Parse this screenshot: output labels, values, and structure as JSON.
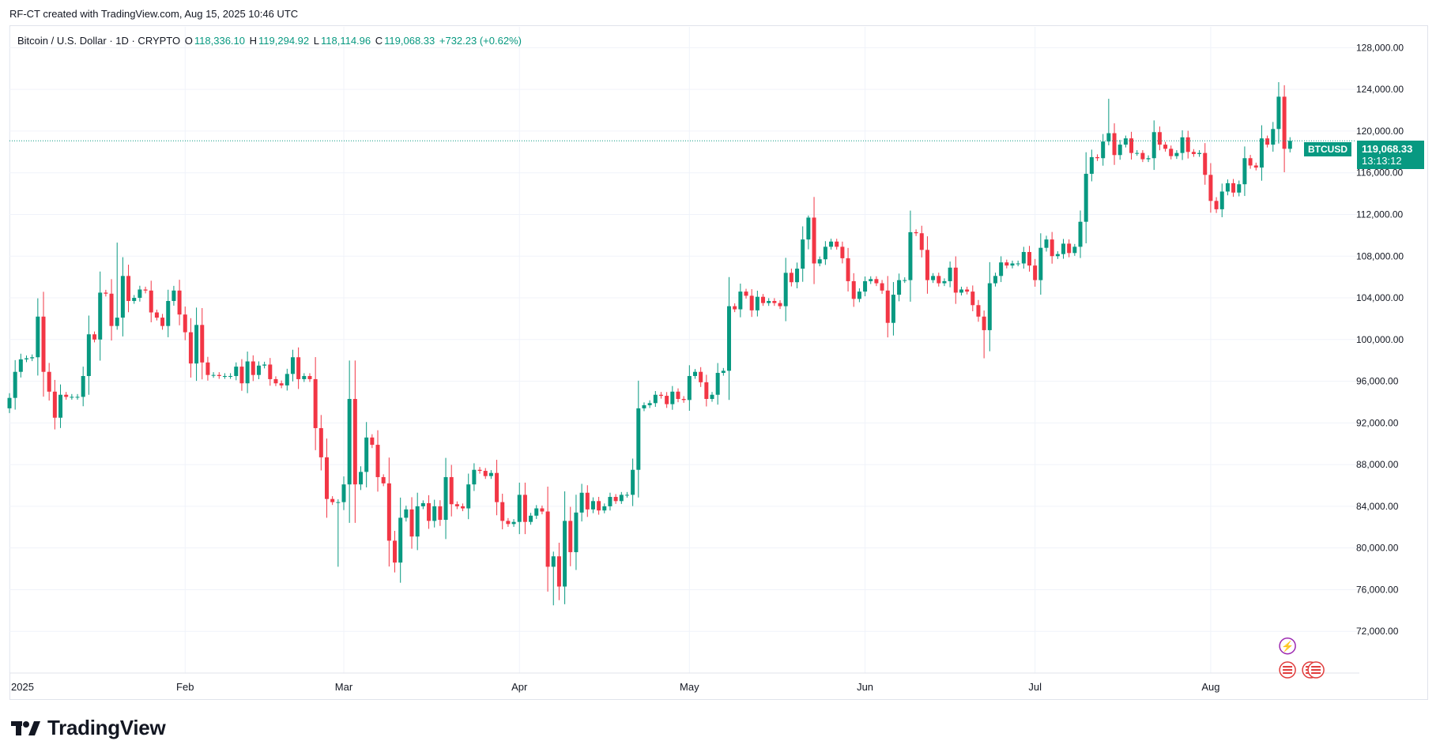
{
  "credit": "RF-CT created with TradingView.com, Aug 15, 2025 10:46 UTC",
  "legend": {
    "symbol": "Bitcoin / U.S. Dollar · 1D · CRYPTO",
    "open_label": "O",
    "open": "118,336.10",
    "high_label": "H",
    "high": "119,294.92",
    "low_label": "L",
    "low": "118,114.96",
    "close_label": "C",
    "close": "119,068.33",
    "change": "+732.23 (+0.62%)"
  },
  "last_price": {
    "symbol": "BTCUSD",
    "price": "119,068.33",
    "countdown": "13:13:12"
  },
  "brand": "TradingView",
  "colors": {
    "up": "#089981",
    "down": "#f23645",
    "grid": "#f0f3fa",
    "text": "#131722",
    "event_red": "#e03b3b",
    "event_purple": "#9c27b0"
  },
  "icons": [
    "tradingview-logo-icon",
    "lightning-event-icon",
    "us-flag-event-icon"
  ],
  "chart_data": {
    "type": "candlestick",
    "title": "Bitcoin / U.S. Dollar · 1D · CRYPTO",
    "ylim": [
      68000,
      130000
    ],
    "y_ticks": [
      72000,
      76000,
      80000,
      84000,
      88000,
      92000,
      96000,
      100000,
      104000,
      108000,
      112000,
      116000,
      120000,
      124000,
      128000
    ],
    "y_tick_labels": [
      "72,000.00",
      "76,000.00",
      "80,000.00",
      "84,000.00",
      "88,000.00",
      "92,000.00",
      "96,000.00",
      "100,000.00",
      "104,000.00",
      "108,000.00",
      "112,000.00",
      "116,000.00",
      "120,000.00",
      "124,000.00",
      "128,000.00"
    ],
    "x_labels": [
      {
        "date": "2025-01-01",
        "label": "2025"
      },
      {
        "date": "2025-02-01",
        "label": "Feb"
      },
      {
        "date": "2025-03-01",
        "label": "Mar"
      },
      {
        "date": "2025-04-01",
        "label": "Apr"
      },
      {
        "date": "2025-05-01",
        "label": "May"
      },
      {
        "date": "2025-06-01",
        "label": "Jun"
      },
      {
        "date": "2025-07-01",
        "label": "Jul"
      },
      {
        "date": "2025-08-01",
        "label": "Aug"
      }
    ],
    "x_range": [
      "2025-01-01",
      "2025-09-01"
    ],
    "current_price": 119068.33,
    "grid": true,
    "closes": [
      {
        "date": "2025-01-01",
        "close": 94400
      },
      {
        "date": "2025-01-02",
        "close": 96900
      },
      {
        "date": "2025-01-03",
        "close": 98100
      },
      {
        "date": "2025-01-04",
        "close": 98200
      },
      {
        "date": "2025-01-05",
        "close": 98300
      },
      {
        "date": "2025-01-06",
        "close": 102200
      },
      {
        "date": "2025-01-07",
        "close": 96900
      },
      {
        "date": "2025-01-08",
        "close": 95000
      },
      {
        "date": "2025-01-09",
        "close": 92500
      },
      {
        "date": "2025-01-10",
        "close": 94700
      },
      {
        "date": "2025-01-11",
        "close": 94500
      },
      {
        "date": "2025-01-12",
        "close": 94500
      },
      {
        "date": "2025-01-13",
        "close": 94500
      },
      {
        "date": "2025-01-14",
        "close": 96500
      },
      {
        "date": "2025-01-15",
        "close": 100500
      },
      {
        "date": "2025-01-16",
        "close": 100000
      },
      {
        "date": "2025-01-17",
        "close": 104500
      },
      {
        "date": "2025-01-18",
        "close": 104400
      },
      {
        "date": "2025-01-19",
        "close": 101300
      },
      {
        "date": "2025-01-20",
        "close": 102100
      },
      {
        "date": "2025-01-21",
        "close": 106100
      },
      {
        "date": "2025-01-22",
        "close": 103700
      },
      {
        "date": "2025-01-23",
        "close": 104000
      },
      {
        "date": "2025-01-24",
        "close": 104800
      },
      {
        "date": "2025-01-25",
        "close": 104700
      },
      {
        "date": "2025-01-26",
        "close": 102600
      },
      {
        "date": "2025-01-27",
        "close": 102100
      },
      {
        "date": "2025-01-28",
        "close": 101300
      },
      {
        "date": "2025-01-29",
        "close": 103700
      },
      {
        "date": "2025-01-30",
        "close": 104700
      },
      {
        "date": "2025-01-31",
        "close": 102400
      },
      {
        "date": "2025-02-01",
        "close": 100700
      },
      {
        "date": "2025-02-02",
        "close": 97700
      },
      {
        "date": "2025-02-03",
        "close": 101400
      },
      {
        "date": "2025-02-04",
        "close": 97800
      },
      {
        "date": "2025-02-05",
        "close": 96600
      },
      {
        "date": "2025-02-06",
        "close": 96600
      },
      {
        "date": "2025-02-07",
        "close": 96500
      },
      {
        "date": "2025-02-08",
        "close": 96500
      },
      {
        "date": "2025-02-09",
        "close": 96500
      },
      {
        "date": "2025-02-10",
        "close": 97400
      },
      {
        "date": "2025-02-11",
        "close": 95800
      },
      {
        "date": "2025-02-12",
        "close": 97900
      },
      {
        "date": "2025-02-13",
        "close": 96600
      },
      {
        "date": "2025-02-14",
        "close": 97500
      },
      {
        "date": "2025-02-15",
        "close": 97600
      },
      {
        "date": "2025-02-16",
        "close": 96200
      },
      {
        "date": "2025-02-17",
        "close": 95800
      },
      {
        "date": "2025-02-18",
        "close": 95600
      },
      {
        "date": "2025-02-19",
        "close": 96700
      },
      {
        "date": "2025-02-20",
        "close": 98300
      },
      {
        "date": "2025-02-21",
        "close": 96200
      },
      {
        "date": "2025-02-22",
        "close": 96500
      },
      {
        "date": "2025-02-23",
        "close": 96200
      },
      {
        "date": "2025-02-24",
        "close": 91500
      },
      {
        "date": "2025-02-25",
        "close": 88700
      },
      {
        "date": "2025-02-26",
        "close": 84700
      },
      {
        "date": "2025-02-27",
        "close": 84400
      },
      {
        "date": "2025-02-28",
        "close": 84400
      },
      {
        "date": "2025-03-01",
        "close": 86100
      },
      {
        "date": "2025-03-02",
        "close": 94300
      },
      {
        "date": "2025-03-03",
        "close": 86100
      },
      {
        "date": "2025-03-04",
        "close": 87300
      },
      {
        "date": "2025-03-05",
        "close": 90600
      },
      {
        "date": "2025-03-06",
        "close": 89900
      },
      {
        "date": "2025-03-07",
        "close": 86800
      },
      {
        "date": "2025-03-08",
        "close": 86200
      },
      {
        "date": "2025-03-09",
        "close": 80700
      },
      {
        "date": "2025-03-10",
        "close": 78600
      },
      {
        "date": "2025-03-11",
        "close": 82900
      },
      {
        "date": "2025-03-12",
        "close": 83700
      },
      {
        "date": "2025-03-13",
        "close": 81100
      },
      {
        "date": "2025-03-14",
        "close": 84000
      },
      {
        "date": "2025-03-15",
        "close": 84300
      },
      {
        "date": "2025-03-16",
        "close": 82600
      },
      {
        "date": "2025-03-17",
        "close": 84000
      },
      {
        "date": "2025-03-18",
        "close": 82700
      },
      {
        "date": "2025-03-19",
        "close": 86800
      },
      {
        "date": "2025-03-20",
        "close": 84200
      },
      {
        "date": "2025-03-21",
        "close": 84000
      },
      {
        "date": "2025-03-22",
        "close": 83800
      },
      {
        "date": "2025-03-23",
        "close": 86100
      },
      {
        "date": "2025-03-24",
        "close": 87500
      },
      {
        "date": "2025-03-25",
        "close": 87400
      },
      {
        "date": "2025-03-26",
        "close": 86900
      },
      {
        "date": "2025-03-27",
        "close": 87200
      },
      {
        "date": "2025-03-28",
        "close": 84400
      },
      {
        "date": "2025-03-29",
        "close": 82600
      },
      {
        "date": "2025-03-30",
        "close": 82300
      },
      {
        "date": "2025-03-31",
        "close": 82500
      },
      {
        "date": "2025-04-01",
        "close": 85100
      },
      {
        "date": "2025-04-02",
        "close": 82500
      },
      {
        "date": "2025-04-03",
        "close": 83100
      },
      {
        "date": "2025-04-04",
        "close": 83800
      },
      {
        "date": "2025-04-05",
        "close": 83500
      },
      {
        "date": "2025-04-06",
        "close": 78200
      },
      {
        "date": "2025-04-07",
        "close": 79200
      },
      {
        "date": "2025-04-08",
        "close": 76300
      },
      {
        "date": "2025-04-09",
        "close": 82600
      },
      {
        "date": "2025-04-10",
        "close": 79600
      },
      {
        "date": "2025-04-11",
        "close": 83400
      },
      {
        "date": "2025-04-12",
        "close": 85300
      },
      {
        "date": "2025-04-13",
        "close": 83700
      },
      {
        "date": "2025-04-14",
        "close": 84500
      },
      {
        "date": "2025-04-15",
        "close": 83600
      },
      {
        "date": "2025-04-16",
        "close": 84000
      },
      {
        "date": "2025-04-17",
        "close": 84900
      },
      {
        "date": "2025-04-18",
        "close": 84500
      },
      {
        "date": "2025-04-19",
        "close": 85100
      },
      {
        "date": "2025-04-20",
        "close": 85100
      },
      {
        "date": "2025-04-21",
        "close": 87500
      },
      {
        "date": "2025-04-22",
        "close": 93400
      },
      {
        "date": "2025-04-23",
        "close": 93700
      },
      {
        "date": "2025-04-24",
        "close": 93900
      },
      {
        "date": "2025-04-25",
        "close": 94700
      },
      {
        "date": "2025-04-26",
        "close": 94600
      },
      {
        "date": "2025-04-27",
        "close": 93800
      },
      {
        "date": "2025-04-28",
        "close": 95000
      },
      {
        "date": "2025-04-29",
        "close": 94300
      },
      {
        "date": "2025-04-30",
        "close": 94200
      },
      {
        "date": "2025-05-01",
        "close": 96500
      },
      {
        "date": "2025-05-02",
        "close": 96900
      },
      {
        "date": "2025-05-03",
        "close": 95900
      },
      {
        "date": "2025-05-04",
        "close": 94300
      },
      {
        "date": "2025-05-05",
        "close": 94700
      },
      {
        "date": "2025-05-06",
        "close": 96800
      },
      {
        "date": "2025-05-07",
        "close": 97000
      },
      {
        "date": "2025-05-08",
        "close": 103200
      },
      {
        "date": "2025-05-09",
        "close": 102900
      },
      {
        "date": "2025-05-10",
        "close": 104600
      },
      {
        "date": "2025-05-11",
        "close": 104200
      },
      {
        "date": "2025-05-12",
        "close": 102800
      },
      {
        "date": "2025-05-13",
        "close": 104100
      },
      {
        "date": "2025-05-14",
        "close": 103500
      },
      {
        "date": "2025-05-15",
        "close": 103700
      },
      {
        "date": "2025-05-16",
        "close": 103500
      },
      {
        "date": "2025-05-17",
        "close": 103200
      },
      {
        "date": "2025-05-18",
        "close": 106400
      },
      {
        "date": "2025-05-19",
        "close": 105500
      },
      {
        "date": "2025-05-20",
        "close": 106800
      },
      {
        "date": "2025-05-21",
        "close": 109600
      },
      {
        "date": "2025-05-22",
        "close": 111700
      },
      {
        "date": "2025-05-23",
        "close": 107300
      },
      {
        "date": "2025-05-24",
        "close": 107700
      },
      {
        "date": "2025-05-25",
        "close": 108900
      },
      {
        "date": "2025-05-26",
        "close": 109400
      },
      {
        "date": "2025-05-27",
        "close": 108900
      },
      {
        "date": "2025-05-28",
        "close": 107800
      },
      {
        "date": "2025-05-29",
        "close": 105600
      },
      {
        "date": "2025-05-30",
        "close": 103900
      },
      {
        "date": "2025-05-31",
        "close": 104600
      },
      {
        "date": "2025-06-01",
        "close": 105600
      },
      {
        "date": "2025-06-02",
        "close": 105800
      },
      {
        "date": "2025-06-03",
        "close": 105400
      },
      {
        "date": "2025-06-04",
        "close": 104700
      },
      {
        "date": "2025-06-05",
        "close": 101600
      },
      {
        "date": "2025-06-06",
        "close": 104300
      },
      {
        "date": "2025-06-07",
        "close": 105700
      },
      {
        "date": "2025-06-08",
        "close": 105700
      },
      {
        "date": "2025-06-09",
        "close": 110300
      },
      {
        "date": "2025-06-10",
        "close": 110200
      },
      {
        "date": "2025-06-11",
        "close": 108600
      },
      {
        "date": "2025-06-12",
        "close": 105700
      },
      {
        "date": "2025-06-13",
        "close": 106100
      },
      {
        "date": "2025-06-14",
        "close": 105400
      },
      {
        "date": "2025-06-15",
        "close": 105600
      },
      {
        "date": "2025-06-16",
        "close": 106900
      },
      {
        "date": "2025-06-17",
        "close": 104500
      },
      {
        "date": "2025-06-18",
        "close": 104800
      },
      {
        "date": "2025-06-19",
        "close": 104600
      },
      {
        "date": "2025-06-20",
        "close": 103300
      },
      {
        "date": "2025-06-21",
        "close": 102200
      },
      {
        "date": "2025-06-22",
        "close": 100900
      },
      {
        "date": "2025-06-23",
        "close": 105400
      },
      {
        "date": "2025-06-24",
        "close": 106100
      },
      {
        "date": "2025-06-25",
        "close": 107400
      },
      {
        "date": "2025-06-26",
        "close": 107100
      },
      {
        "date": "2025-06-27",
        "close": 107300
      },
      {
        "date": "2025-06-28",
        "close": 107300
      },
      {
        "date": "2025-06-29",
        "close": 108400
      },
      {
        "date": "2025-06-30",
        "close": 107100
      },
      {
        "date": "2025-07-01",
        "close": 105700
      },
      {
        "date": "2025-07-02",
        "close": 108800
      },
      {
        "date": "2025-07-03",
        "close": 109600
      },
      {
        "date": "2025-07-04",
        "close": 108000
      },
      {
        "date": "2025-07-05",
        "close": 108200
      },
      {
        "date": "2025-07-06",
        "close": 109200
      },
      {
        "date": "2025-07-07",
        "close": 108300
      },
      {
        "date": "2025-07-08",
        "close": 108900
      },
      {
        "date": "2025-07-09",
        "close": 111300
      },
      {
        "date": "2025-07-10",
        "close": 115900
      },
      {
        "date": "2025-07-11",
        "close": 117500
      },
      {
        "date": "2025-07-12",
        "close": 117400
      },
      {
        "date": "2025-07-13",
        "close": 119000
      },
      {
        "date": "2025-07-14",
        "close": 119800
      },
      {
        "date": "2025-07-15",
        "close": 117700
      },
      {
        "date": "2025-07-16",
        "close": 118700
      },
      {
        "date": "2025-07-17",
        "close": 119300
      },
      {
        "date": "2025-07-18",
        "close": 117900
      },
      {
        "date": "2025-07-19",
        "close": 117900
      },
      {
        "date": "2025-07-20",
        "close": 117300
      },
      {
        "date": "2025-07-21",
        "close": 117400
      },
      {
        "date": "2025-07-22",
        "close": 119900
      },
      {
        "date": "2025-07-23",
        "close": 118700
      },
      {
        "date": "2025-07-24",
        "close": 118300
      },
      {
        "date": "2025-07-25",
        "close": 117600
      },
      {
        "date": "2025-07-26",
        "close": 117900
      },
      {
        "date": "2025-07-27",
        "close": 119400
      },
      {
        "date": "2025-07-28",
        "close": 118000
      },
      {
        "date": "2025-07-29",
        "close": 117800
      },
      {
        "date": "2025-07-30",
        "close": 117900
      },
      {
        "date": "2025-07-31",
        "close": 115800
      },
      {
        "date": "2025-08-01",
        "close": 113300
      },
      {
        "date": "2025-08-02",
        "close": 112500
      },
      {
        "date": "2025-08-03",
        "close": 114200
      },
      {
        "date": "2025-08-04",
        "close": 115000
      },
      {
        "date": "2025-08-05",
        "close": 114100
      },
      {
        "date": "2025-08-06",
        "close": 114900
      },
      {
        "date": "2025-08-07",
        "close": 117400
      },
      {
        "date": "2025-08-08",
        "close": 116700
      },
      {
        "date": "2025-08-09",
        "close": 116500
      },
      {
        "date": "2025-08-10",
        "close": 119300
      },
      {
        "date": "2025-08-11",
        "close": 118700
      },
      {
        "date": "2025-08-12",
        "close": 120200
      },
      {
        "date": "2025-08-13",
        "close": 123300
      },
      {
        "date": "2025-08-14",
        "close": 118300
      },
      {
        "date": "2025-08-15",
        "close": 119068.33
      }
    ],
    "notable_highs": [
      {
        "date": "2025-01-20",
        "high": 109300
      },
      {
        "date": "2025-05-22",
        "high": 111900
      },
      {
        "date": "2025-07-14",
        "high": 123100
      },
      {
        "date": "2025-08-14",
        "high": 124400
      }
    ],
    "notable_lows": [
      {
        "date": "2025-02-28",
        "low": 78200
      },
      {
        "date": "2025-04-07",
        "low": 74500
      },
      {
        "date": "2025-04-09",
        "low": 74600
      },
      {
        "date": "2025-06-22",
        "low": 98200
      }
    ]
  }
}
